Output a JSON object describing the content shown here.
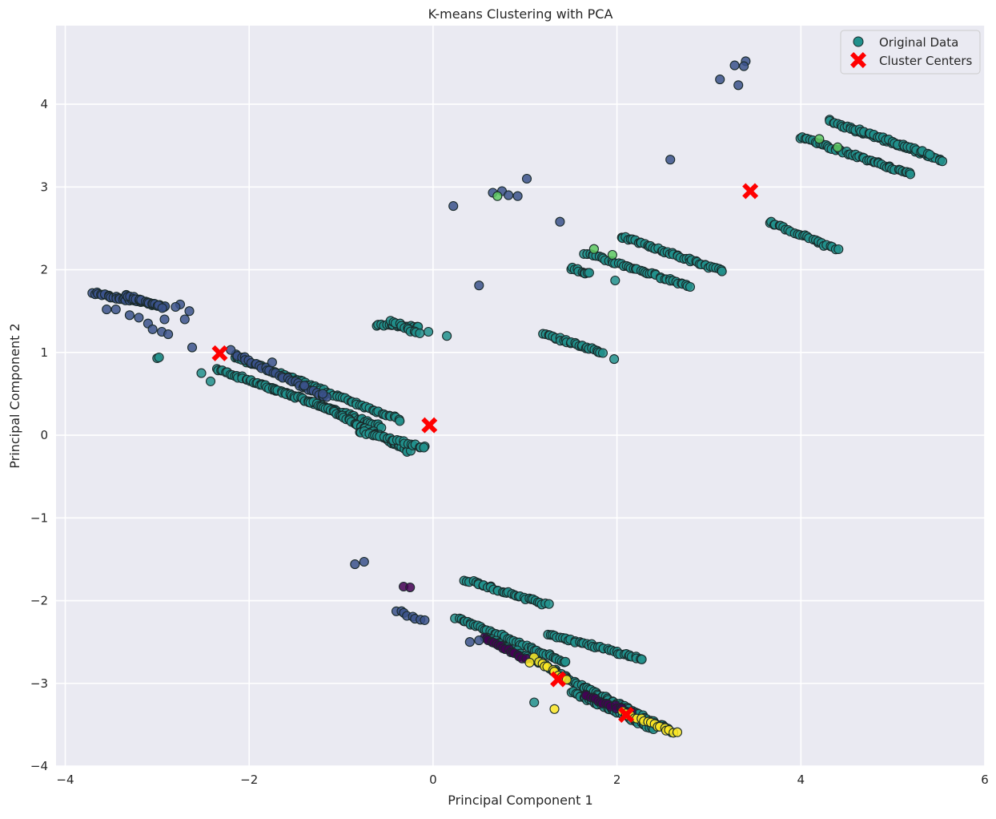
{
  "chart_data": {
    "type": "scatter",
    "title": "K-means Clustering with PCA",
    "xlabel": "Principal Component 1",
    "ylabel": "Principal Component 2",
    "xlim": [
      -4.1,
      6.0
    ],
    "ylim": [
      -4.0,
      4.95
    ],
    "xticks": [
      -4,
      -2,
      0,
      2,
      4,
      6
    ],
    "yticks": [
      -4,
      -3,
      -2,
      -1,
      0,
      1,
      2,
      3,
      4
    ],
    "xtick_labels": [
      "−4",
      "−2",
      "0",
      "2",
      "4",
      "6"
    ],
    "ytick_labels": [
      "−4",
      "−3",
      "−2",
      "−1",
      "0",
      "1",
      "2",
      "3",
      "4"
    ],
    "grid": true,
    "legend": {
      "position": "top-right",
      "entries": [
        "Original Data",
        "Cluster Centers"
      ]
    },
    "colors": {
      "background": "#eaeaf2",
      "grid": "#ffffff",
      "teal": "#21918c",
      "blue": "#3b528b",
      "purple": "#440154",
      "yellow": "#fde725",
      "green": "#5ec962",
      "edge": "#1a2a2a",
      "center": "#ff0000"
    },
    "series": [
      {
        "name": "Original Data",
        "strands": [
          {
            "from": [
              -2.35,
              0.8
            ],
            "to": [
              -0.95,
              0.25
            ],
            "n": 60,
            "color": "teal"
          },
          {
            "from": [
              -2.15,
              0.95
            ],
            "to": [
              -0.35,
              0.18
            ],
            "n": 70,
            "color": "teal"
          },
          {
            "from": [
              -1.85,
              0.6
            ],
            "to": [
              -0.55,
              0.1
            ],
            "n": 55,
            "color": "teal"
          },
          {
            "from": [
              -1.2,
              0.35
            ],
            "to": [
              -0.25,
              -0.2
            ],
            "n": 45,
            "color": "teal"
          },
          {
            "from": [
              -0.8,
              0.05
            ],
            "to": [
              -0.1,
              -0.15
            ],
            "n": 25,
            "color": "teal"
          },
          {
            "from": [
              -0.62,
              1.33
            ],
            "to": [
              -0.15,
              1.32
            ],
            "n": 18,
            "color": "teal"
          },
          {
            "from": [
              -0.45,
              1.38
            ],
            "to": [
              -0.15,
              1.22
            ],
            "n": 12,
            "color": "teal"
          },
          {
            "from": [
              1.2,
              1.22
            ],
            "to": [
              1.85,
              1.0
            ],
            "n": 28,
            "color": "teal"
          },
          {
            "from": [
              1.5,
              2.02
            ],
            "to": [
              1.7,
              1.95
            ],
            "n": 10,
            "color": "teal"
          },
          {
            "from": [
              1.65,
              2.2
            ],
            "to": [
              2.8,
              1.8
            ],
            "n": 45,
            "color": "teal"
          },
          {
            "from": [
              2.05,
              2.4
            ],
            "to": [
              3.15,
              1.98
            ],
            "n": 45,
            "color": "teal"
          },
          {
            "from": [
              3.65,
              2.58
            ],
            "to": [
              4.4,
              2.24
            ],
            "n": 28,
            "color": "teal"
          },
          {
            "from": [
              4.3,
              3.8
            ],
            "to": [
              5.55,
              3.32
            ],
            "n": 50,
            "color": "teal"
          },
          {
            "from": [
              4.0,
              3.6
            ],
            "to": [
              5.2,
              3.15
            ],
            "n": 50,
            "color": "teal"
          },
          {
            "from": [
              4.6,
              3.7
            ],
            "to": [
              5.4,
              3.4
            ],
            "n": 25,
            "color": "teal"
          },
          {
            "from": [
              0.35,
              -1.75
            ],
            "to": [
              1.25,
              -2.05
            ],
            "n": 35,
            "color": "teal"
          },
          {
            "from": [
              0.25,
              -2.2
            ],
            "to": [
              1.45,
              -2.75
            ],
            "n": 50,
            "color": "teal"
          },
          {
            "from": [
              0.6,
              -2.45
            ],
            "to": [
              1.35,
              -2.85
            ],
            "n": 30,
            "color": "teal"
          },
          {
            "from": [
              1.25,
              -2.4
            ],
            "to": [
              2.25,
              -2.7
            ],
            "n": 40,
            "color": "teal"
          },
          {
            "from": [
              1.3,
              -2.85
            ],
            "to": [
              2.6,
              -3.58
            ],
            "n": 60,
            "color": "teal"
          },
          {
            "from": [
              1.5,
              -3.1
            ],
            "to": [
              2.4,
              -3.55
            ],
            "n": 40,
            "color": "teal"
          },
          {
            "from": [
              -3.7,
              1.72
            ],
            "to": [
              -2.9,
              1.55
            ],
            "n": 40,
            "color": "blue"
          },
          {
            "from": [
              -3.35,
              1.7
            ],
            "to": [
              -2.95,
              1.55
            ],
            "n": 20,
            "color": "blue"
          },
          {
            "from": [
              -2.15,
              0.98
            ],
            "to": [
              -1.15,
              0.45
            ],
            "n": 35,
            "color": "blue"
          },
          {
            "from": [
              -0.4,
              -2.12
            ],
            "to": [
              -0.1,
              -2.25
            ],
            "n": 8,
            "color": "blue"
          },
          {
            "from": [
              0.55,
              -2.45
            ],
            "to": [
              1.0,
              -2.7
            ],
            "n": 18,
            "color": "purple"
          },
          {
            "from": [
              1.65,
              -3.15
            ],
            "to": [
              2.15,
              -3.35
            ],
            "n": 18,
            "color": "purple"
          },
          {
            "from": [
              1.1,
              -2.7
            ],
            "to": [
              1.45,
              -2.95
            ],
            "n": 10,
            "color": "yellow"
          },
          {
            "from": [
              2.05,
              -3.35
            ],
            "to": [
              2.65,
              -3.6
            ],
            "n": 18,
            "color": "yellow"
          }
        ],
        "points": [
          {
            "x": -3.55,
            "y": 1.52,
            "color": "blue"
          },
          {
            "x": -3.45,
            "y": 1.52,
            "color": "blue"
          },
          {
            "x": -3.3,
            "y": 1.45,
            "color": "blue"
          },
          {
            "x": -3.2,
            "y": 1.42,
            "color": "blue"
          },
          {
            "x": -3.1,
            "y": 1.35,
            "color": "blue"
          },
          {
            "x": -3.05,
            "y": 1.28,
            "color": "blue"
          },
          {
            "x": -2.95,
            "y": 1.25,
            "color": "blue"
          },
          {
            "x": -2.88,
            "y": 1.22,
            "color": "blue"
          },
          {
            "x": -2.92,
            "y": 1.4,
            "color": "blue"
          },
          {
            "x": -2.75,
            "y": 1.58,
            "color": "blue"
          },
          {
            "x": -2.7,
            "y": 1.4,
            "color": "blue"
          },
          {
            "x": -2.65,
            "y": 1.5,
            "color": "blue"
          },
          {
            "x": -2.62,
            "y": 1.06,
            "color": "blue"
          },
          {
            "x": -2.8,
            "y": 1.55,
            "color": "blue"
          },
          {
            "x": -3.0,
            "y": 0.93,
            "color": "teal"
          },
          {
            "x": -2.98,
            "y": 0.94,
            "color": "teal"
          },
          {
            "x": -2.52,
            "y": 0.75,
            "color": "teal"
          },
          {
            "x": -2.42,
            "y": 0.65,
            "color": "teal"
          },
          {
            "x": -1.75,
            "y": 0.88,
            "color": "blue"
          },
          {
            "x": -1.4,
            "y": 0.6,
            "color": "blue"
          },
          {
            "x": -1.2,
            "y": 0.5,
            "color": "blue"
          },
          {
            "x": -2.2,
            "y": 1.03,
            "color": "blue"
          },
          {
            "x": -0.05,
            "y": 1.25,
            "color": "teal"
          },
          {
            "x": 0.15,
            "y": 1.2,
            "color": "teal"
          },
          {
            "x": -0.1,
            "y": -0.15,
            "color": "teal"
          },
          {
            "x": 0.22,
            "y": 2.77,
            "color": "blue"
          },
          {
            "x": 0.5,
            "y": 1.81,
            "color": "blue"
          },
          {
            "x": 0.65,
            "y": 2.93,
            "color": "blue"
          },
          {
            "x": 0.75,
            "y": 2.95,
            "color": "blue"
          },
          {
            "x": 0.82,
            "y": 2.9,
            "color": "blue"
          },
          {
            "x": 0.92,
            "y": 2.89,
            "color": "blue"
          },
          {
            "x": 0.7,
            "y": 2.89,
            "color": "green"
          },
          {
            "x": 1.02,
            "y": 3.1,
            "color": "blue"
          },
          {
            "x": 1.38,
            "y": 2.58,
            "color": "blue"
          },
          {
            "x": 2.58,
            "y": 3.33,
            "color": "blue"
          },
          {
            "x": 3.12,
            "y": 4.3,
            "color": "blue"
          },
          {
            "x": 3.28,
            "y": 4.47,
            "color": "blue"
          },
          {
            "x": 3.4,
            "y": 4.52,
            "color": "blue"
          },
          {
            "x": 3.38,
            "y": 4.46,
            "color": "blue"
          },
          {
            "x": 3.32,
            "y": 4.23,
            "color": "blue"
          },
          {
            "x": 1.97,
            "y": 0.92,
            "color": "teal"
          },
          {
            "x": 1.98,
            "y": 1.87,
            "color": "teal"
          },
          {
            "x": 1.75,
            "y": 2.25,
            "color": "green"
          },
          {
            "x": 1.95,
            "y": 2.18,
            "color": "green"
          },
          {
            "x": 4.4,
            "y": 3.48,
            "color": "green"
          },
          {
            "x": 4.2,
            "y": 3.58,
            "color": "green"
          },
          {
            "x": -0.85,
            "y": -1.56,
            "color": "blue"
          },
          {
            "x": -0.75,
            "y": -1.53,
            "color": "blue"
          },
          {
            "x": -0.32,
            "y": -1.83,
            "color": "purple"
          },
          {
            "x": -0.25,
            "y": -1.84,
            "color": "purple"
          },
          {
            "x": 0.4,
            "y": -2.5,
            "color": "blue"
          },
          {
            "x": 0.5,
            "y": -2.48,
            "color": "blue"
          },
          {
            "x": 1.1,
            "y": -3.23,
            "color": "teal"
          },
          {
            "x": 1.32,
            "y": -3.31,
            "color": "yellow"
          },
          {
            "x": 2.27,
            "y": -2.71,
            "color": "teal"
          },
          {
            "x": 1.05,
            "y": -2.75,
            "color": "yellow"
          }
        ]
      },
      {
        "name": "Cluster Centers",
        "points": [
          {
            "x": -2.32,
            "y": 0.99
          },
          {
            "x": -0.04,
            "y": 0.12
          },
          {
            "x": 3.45,
            "y": 2.95
          },
          {
            "x": 1.36,
            "y": -2.95
          },
          {
            "x": 2.1,
            "y": -3.38
          }
        ]
      }
    ]
  }
}
